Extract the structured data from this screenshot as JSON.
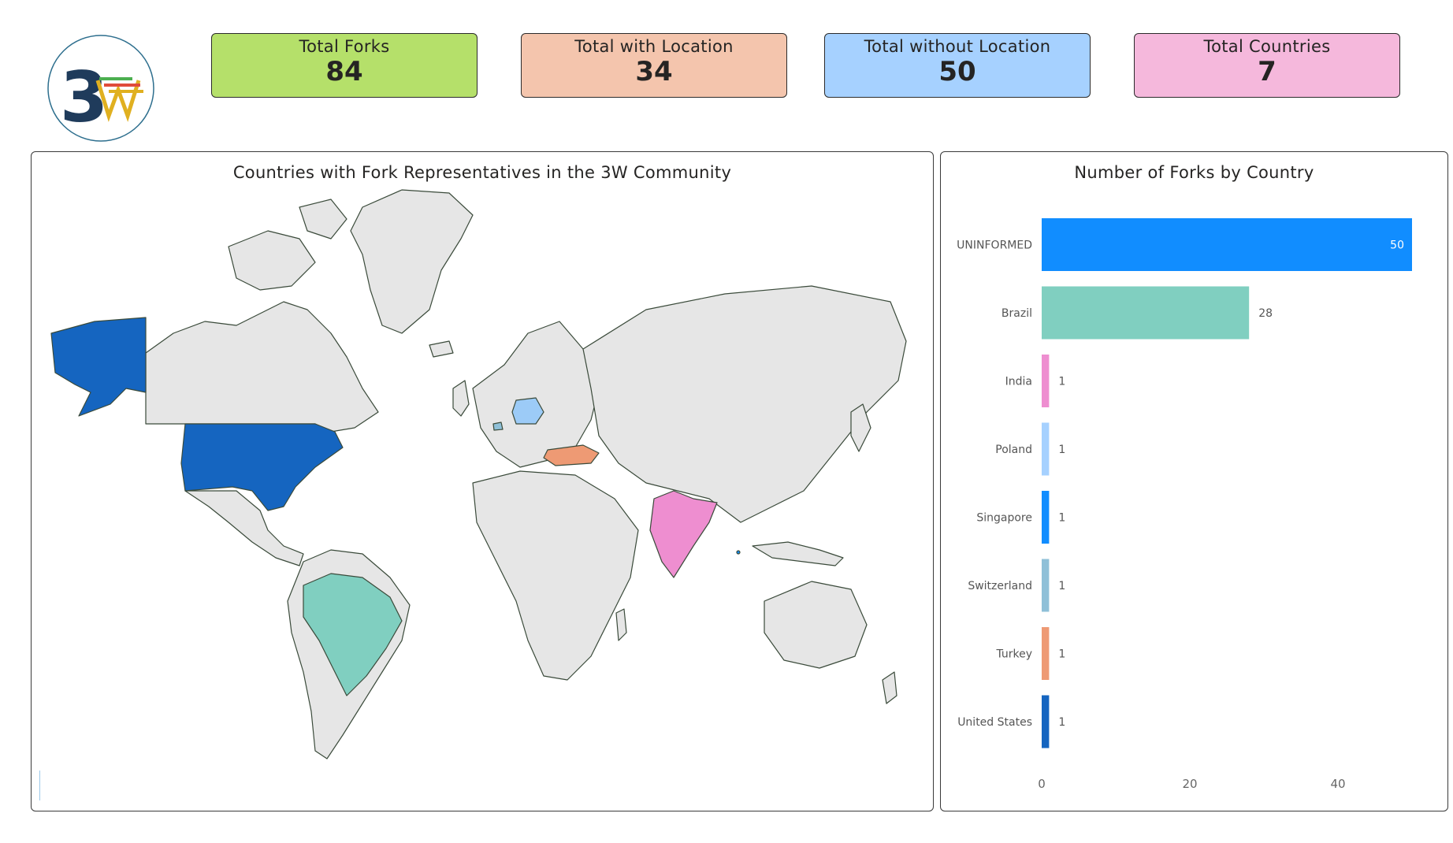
{
  "logo": {
    "text": "3W",
    "colors": {
      "three": "#1f3b5b",
      "w_green": "#4caf50",
      "w_yellow": "#e0b020",
      "w_red": "#e04b3a",
      "ring": "#2e6f8e"
    }
  },
  "kpis": [
    {
      "label": "Total Forks",
      "value": "84",
      "color": "#b5e06a"
    },
    {
      "label": "Total with Location",
      "value": "34",
      "color": "#f4c5ad"
    },
    {
      "label": "Total without Location",
      "value": "50",
      "color": "#a6d1ff"
    },
    {
      "label": "Total Countries",
      "value": "7",
      "color": "#f5b8dc"
    }
  ],
  "map": {
    "title": "Countries with Fork Representatives in the 3W Community",
    "highlighted": [
      {
        "country": "United States",
        "color": "#1565c0"
      },
      {
        "country": "Brazil",
        "color": "#80cfc0"
      },
      {
        "country": "India",
        "color": "#ee8ed0"
      },
      {
        "country": "Poland",
        "color": "#9ccbf7"
      },
      {
        "country": "Turkey",
        "color": "#ee9a74"
      },
      {
        "country": "Switzerland",
        "color": "#8fc0d8"
      },
      {
        "country": "Singapore",
        "color": "#118dff"
      }
    ],
    "land_color": "#e6e6e6",
    "border_color": "#3a4a3a"
  },
  "chart_data": {
    "type": "bar",
    "orientation": "horizontal",
    "title": "Number of Forks by Country",
    "categories": [
      "UNINFORMED",
      "Brazil",
      "India",
      "Poland",
      "Singapore",
      "Switzerland",
      "Turkey",
      "United States"
    ],
    "values": [
      50,
      28,
      1,
      1,
      1,
      1,
      1,
      1
    ],
    "data_labels": [
      "50",
      "28",
      "1",
      "1",
      "1",
      "1",
      "1",
      "1"
    ],
    "colors": [
      "#118dff",
      "#80cfc0",
      "#ee8ed0",
      "#a6d1ff",
      "#118dff",
      "#8fc0d8",
      "#ee9a74",
      "#1565c0"
    ],
    "xlim": [
      0,
      50
    ],
    "xticks": [
      "0",
      "20",
      "40"
    ],
    "xtick_values": [
      0,
      20,
      40
    ],
    "grid": false
  }
}
